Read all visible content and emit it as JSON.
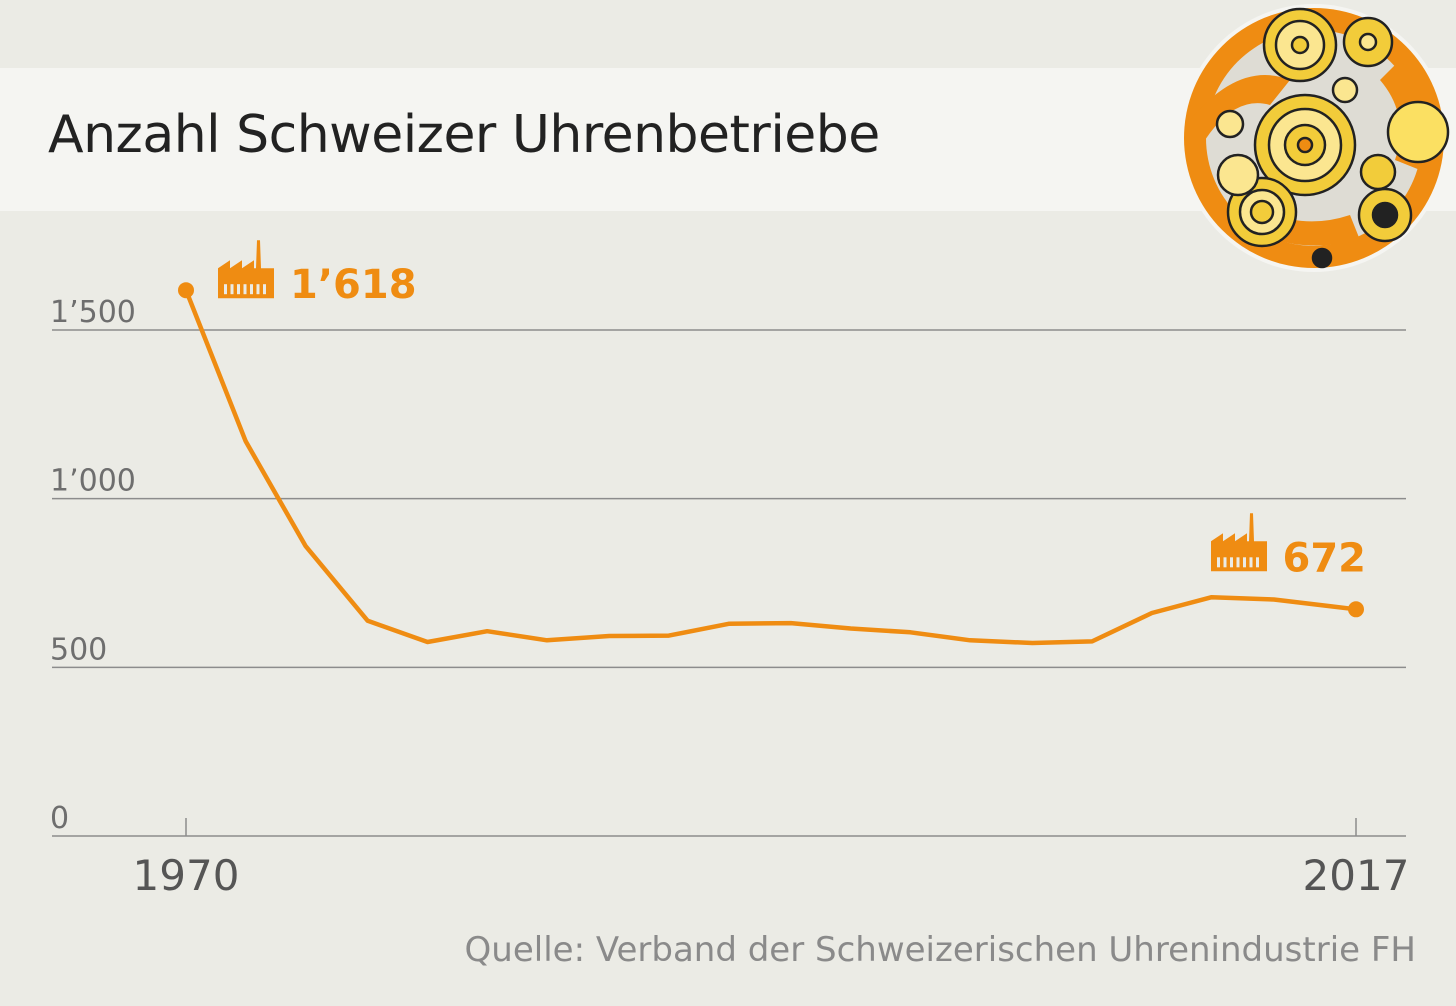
{
  "title": "Anzahl Schweizer Uhrenbetriebe",
  "source": "Quelle: Verband der Schweizerischen Uhrenindustrie FH",
  "colors": {
    "line": "#ef8c12",
    "grid": "#8c8c8c",
    "axis_text": "#6e6e6e",
    "background": "#ebebe5",
    "title_band": "#f5f5f2"
  },
  "icons": [
    "factory-icon",
    "watch-movement-gears-icon"
  ],
  "chart_data": {
    "type": "line",
    "title": "Anzahl Schweizer Uhrenbetriebe",
    "xlabel": "",
    "ylabel": "",
    "xlim": [
      1970,
      2017
    ],
    "ylim": [
      0,
      1500
    ],
    "y_ticks": [
      {
        "value": 0,
        "label": "0"
      },
      {
        "value": 500,
        "label": "500"
      },
      {
        "value": 1000,
        "label": "1’000"
      },
      {
        "value": 1500,
        "label": "1’500"
      }
    ],
    "x_tick_labels": [
      {
        "value": 1970,
        "label": "1970"
      },
      {
        "value": 2017,
        "label": "2017"
      }
    ],
    "grid": true,
    "series": [
      {
        "x": [
          1970,
          1972.4,
          1974.8,
          1977.3,
          1979.7,
          1982.1,
          1984.5,
          1987.0,
          1989.4,
          1991.8,
          1994.3,
          1996.7,
          1999.1,
          2001.5,
          2004.0,
          2006.4,
          2008.8,
          2011.2,
          2013.7,
          2016.1,
          2017
        ],
        "values": [
          1618,
          1170,
          860,
          638,
          575,
          607,
          580,
          593,
          594,
          629,
          631,
          615,
          604,
          580,
          572,
          577,
          661,
          708,
          701,
          680,
          672
        ]
      }
    ],
    "annotations": [
      {
        "x": 1970,
        "y": 1618,
        "label": "1’618"
      },
      {
        "x": 2017,
        "y": 672,
        "label": "672"
      }
    ]
  }
}
